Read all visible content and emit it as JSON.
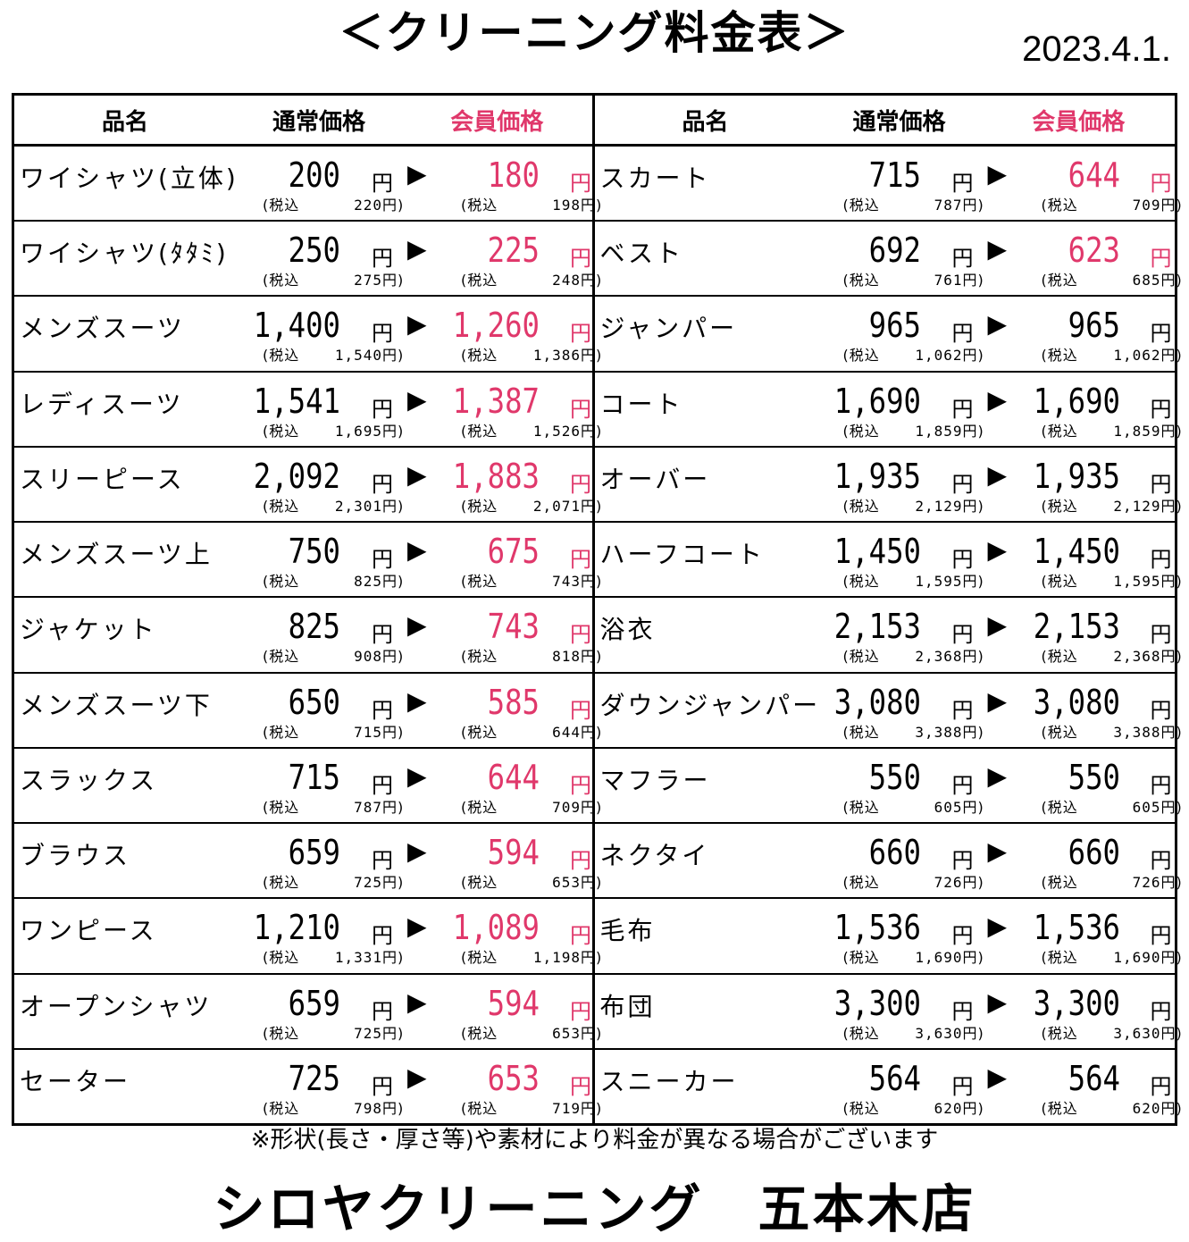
{
  "title": "＜クリーニング料金表＞",
  "date": "2023.4.1.",
  "headers": {
    "name": "品名",
    "regular": "通常価格",
    "member": "会員価格"
  },
  "labels": {
    "yen": "円",
    "tax_prefix": "(税込",
    "tax_suffix": "円)",
    "arrow": "▶"
  },
  "colors": {
    "member_accent": "#e0386b"
  },
  "left_rows": [
    {
      "name": "ワイシャツ(立体)",
      "regular": "200",
      "regular_tax": "220",
      "member": "180",
      "member_tax": "198",
      "discounted": true
    },
    {
      "name": "ワイシャツ(ﾀﾀﾐ)",
      "regular": "250",
      "regular_tax": "275",
      "member": "225",
      "member_tax": "248",
      "discounted": true
    },
    {
      "name": "メンズスーツ",
      "regular": "1,400",
      "regular_tax": "1,540",
      "member": "1,260",
      "member_tax": "1,386",
      "discounted": true
    },
    {
      "name": "レディスーツ",
      "regular": "1,541",
      "regular_tax": "1,695",
      "member": "1,387",
      "member_tax": "1,526",
      "discounted": true
    },
    {
      "name": "スリーピース",
      "regular": "2,092",
      "regular_tax": "2,301",
      "member": "1,883",
      "member_tax": "2,071",
      "discounted": true
    },
    {
      "name": "メンズスーツ上",
      "regular": "750",
      "regular_tax": "825",
      "member": "675",
      "member_tax": "743",
      "discounted": true
    },
    {
      "name": "ジャケット",
      "regular": "825",
      "regular_tax": "908",
      "member": "743",
      "member_tax": "818",
      "discounted": true
    },
    {
      "name": "メンズスーツ下",
      "regular": "650",
      "regular_tax": "715",
      "member": "585",
      "member_tax": "644",
      "discounted": true
    },
    {
      "name": "スラックス",
      "regular": "715",
      "regular_tax": "787",
      "member": "644",
      "member_tax": "709",
      "discounted": true
    },
    {
      "name": "ブラウス",
      "regular": "659",
      "regular_tax": "725",
      "member": "594",
      "member_tax": "653",
      "discounted": true
    },
    {
      "name": "ワンピース",
      "regular": "1,210",
      "regular_tax": "1,331",
      "member": "1,089",
      "member_tax": "1,198",
      "discounted": true
    },
    {
      "name": "オープンシャツ",
      "regular": "659",
      "regular_tax": "725",
      "member": "594",
      "member_tax": "653",
      "discounted": true
    },
    {
      "name": "セーター",
      "regular": "725",
      "regular_tax": "798",
      "member": "653",
      "member_tax": "719",
      "discounted": true
    }
  ],
  "right_rows": [
    {
      "name": "スカート",
      "regular": "715",
      "regular_tax": "787",
      "member": "644",
      "member_tax": "709",
      "discounted": true
    },
    {
      "name": "ベスト",
      "regular": "692",
      "regular_tax": "761",
      "member": "623",
      "member_tax": "685",
      "discounted": true
    },
    {
      "name": "ジャンパー",
      "regular": "965",
      "regular_tax": "1,062",
      "member": "965",
      "member_tax": "1,062",
      "discounted": false
    },
    {
      "name": "コート",
      "regular": "1,690",
      "regular_tax": "1,859",
      "member": "1,690",
      "member_tax": "1,859",
      "discounted": false
    },
    {
      "name": "オーバー",
      "regular": "1,935",
      "regular_tax": "2,129",
      "member": "1,935",
      "member_tax": "2,129",
      "discounted": false
    },
    {
      "name": "ハーフコート",
      "regular": "1,450",
      "regular_tax": "1,595",
      "member": "1,450",
      "member_tax": "1,595",
      "discounted": false
    },
    {
      "name": "浴衣",
      "regular": "2,153",
      "regular_tax": "2,368",
      "member": "2,153",
      "member_tax": "2,368",
      "discounted": false
    },
    {
      "name": "ダウンジャンパー",
      "regular": "3,080",
      "regular_tax": "3,388",
      "member": "3,080",
      "member_tax": "3,388",
      "discounted": false
    },
    {
      "name": "マフラー",
      "regular": "550",
      "regular_tax": "605",
      "member": "550",
      "member_tax": "605",
      "discounted": false
    },
    {
      "name": "ネクタイ",
      "regular": "660",
      "regular_tax": "726",
      "member": "660",
      "member_tax": "726",
      "discounted": false
    },
    {
      "name": "毛布",
      "regular": "1,536",
      "regular_tax": "1,690",
      "member": "1,536",
      "member_tax": "1,690",
      "discounted": false
    },
    {
      "name": "布団",
      "regular": "3,300",
      "regular_tax": "3,630",
      "member": "3,300",
      "member_tax": "3,630",
      "discounted": false
    },
    {
      "name": "スニーカー",
      "regular": "564",
      "regular_tax": "620",
      "member": "564",
      "member_tax": "620",
      "discounted": false
    }
  ],
  "note": "※形状(長さ・厚さ等)や素材により料金が異なる場合がございます",
  "footer": "シロヤクリーニング　五本木店"
}
